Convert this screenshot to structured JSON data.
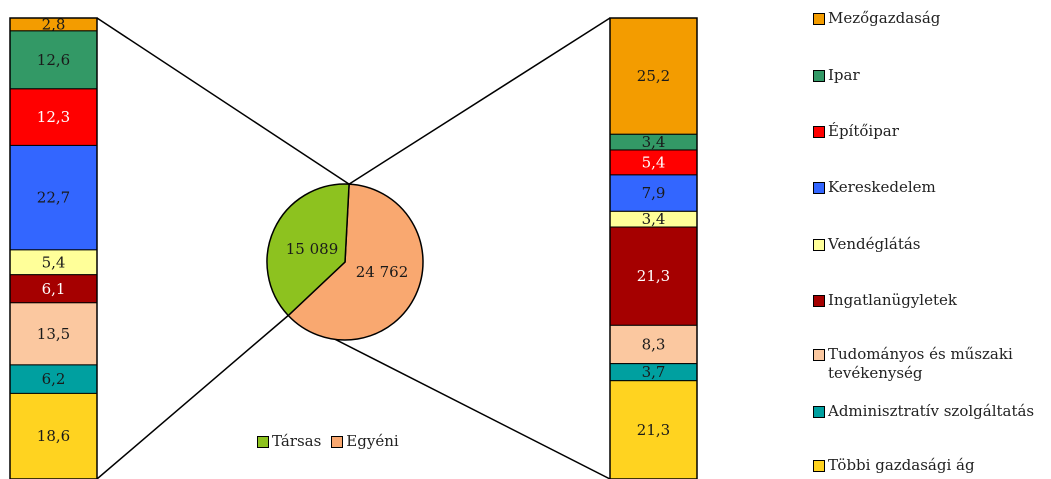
{
  "chart_data": {
    "type": "bar-of-pie",
    "pie": {
      "slices": [
        {
          "name": "Társas",
          "value": 15089,
          "label": "15 089",
          "color": "#8DC21F"
        },
        {
          "name": "Egyéni",
          "value": 24762,
          "label": "24 762",
          "color": "#F9A870"
        }
      ]
    },
    "categories": [
      "Mezőgazdaság",
      "Ipar",
      "Építőipar",
      "Kereskedelem",
      "Vendéglátás",
      "Ingatlanügyletek",
      "Tudományos és műszaki tevékenység",
      "Adminisztratív szolgáltatás",
      "Többi gazdasági ág"
    ],
    "colors": [
      "#F39C00",
      "#339966",
      "#FF0000",
      "#3366FF",
      "#FFFF99",
      "#A50000",
      "#FBC8A0",
      "#00A0A0",
      "#FFD320"
    ],
    "series": [
      {
        "name": "Társas",
        "values": [
          2.8,
          12.6,
          12.3,
          22.7,
          5.4,
          6.1,
          13.5,
          6.2,
          18.6
        ],
        "labels": [
          "2,8",
          "12,6",
          "12,3",
          "22,7",
          "5,4",
          "6,1",
          "13,5",
          "6,2",
          "18,6"
        ]
      },
      {
        "name": "Egyéni",
        "values": [
          25.2,
          3.4,
          5.4,
          7.9,
          3.4,
          21.3,
          8.3,
          3.7,
          21.3
        ],
        "labels": [
          "25,2",
          "3,4",
          "5,4",
          "7,9",
          "3,4",
          "21,3",
          "8,3",
          "3,7",
          "21,3"
        ]
      }
    ]
  },
  "legend": {
    "items": [
      "Mezőgazdaság",
      "Ipar",
      "Építőipar",
      "Kereskedelem",
      "Vendéglátás",
      "Ingatlanügyletek",
      "Tudományos és műszaki tevékenység",
      "Adminisztratív szolgáltatás",
      "Többi gazdasági ág"
    ],
    "pie_items": [
      "Társas",
      "Egyéni"
    ]
  }
}
